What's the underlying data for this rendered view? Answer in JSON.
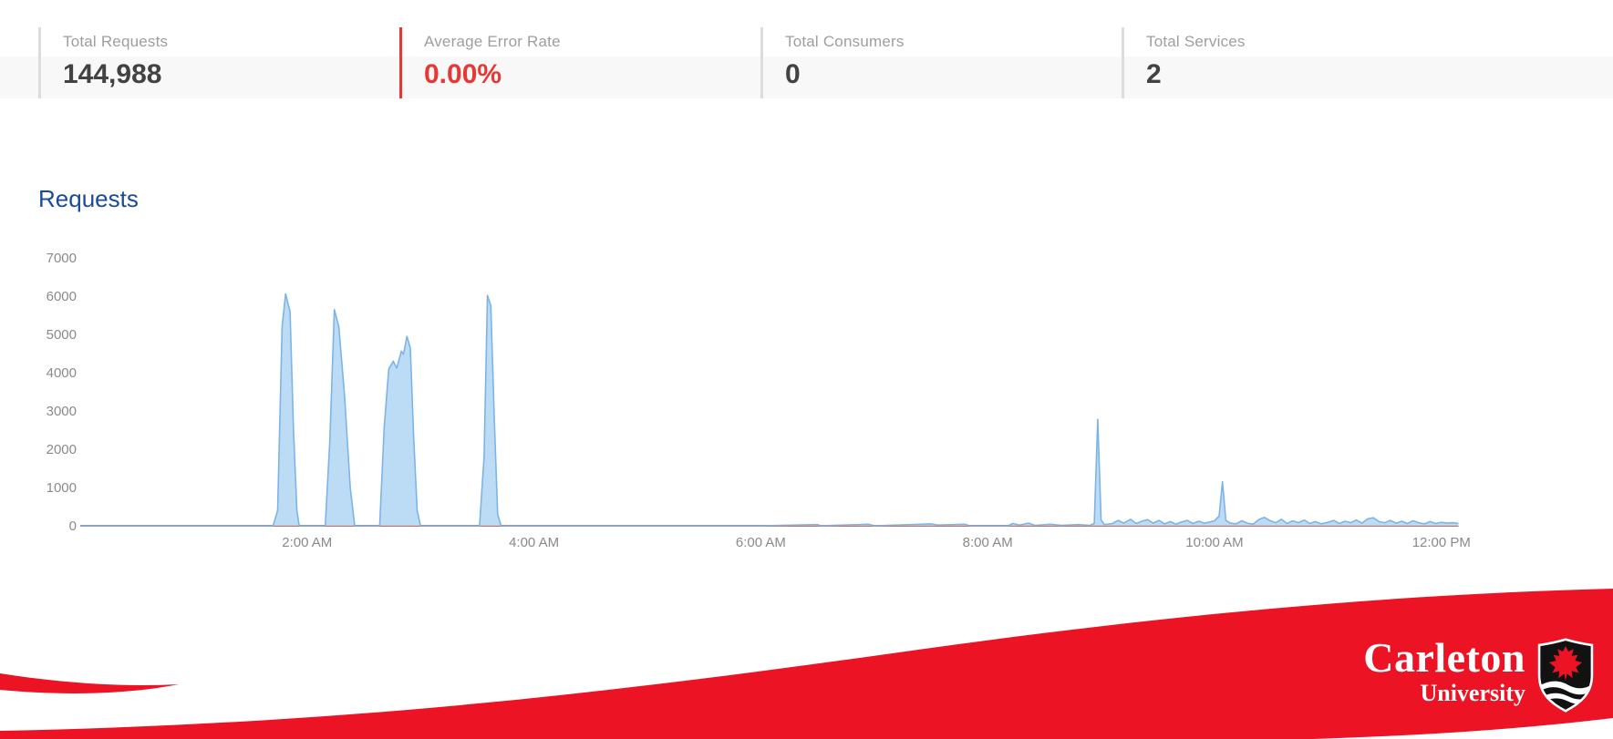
{
  "colors": {
    "brand_red": "#ec1325",
    "error_red": "#e53935",
    "title_blue": "#1a4a9c",
    "area_fill": "#b5d8f4",
    "area_line": "#7db4e5",
    "zero_line": "#cd6a5e",
    "label_gray": "#9e9e9e",
    "value_dark": "#424242",
    "axis_gray": "#8a8a8a",
    "divider_gray": "#dcdcdc"
  },
  "stats": {
    "items": [
      {
        "label": "Total Requests",
        "value": "144,988",
        "accent": "#dcdcdc",
        "value_color": "#424242"
      },
      {
        "label": "Average Error Rate",
        "value": "0.00%",
        "accent": "#e53935",
        "value_color": "#e53935"
      },
      {
        "label": "Total Consumers",
        "value": "0",
        "accent": "#dcdcdc",
        "value_color": "#424242"
      },
      {
        "label": "Total Services",
        "value": "2",
        "accent": "#dcdcdc",
        "value_color": "#424242"
      }
    ]
  },
  "chart_data": {
    "type": "area",
    "title": "Requests",
    "xlabel": "",
    "ylabel": "",
    "xlim_hours": [
      0,
      12.15
    ],
    "ylim": [
      0,
      7000
    ],
    "grid": false,
    "legend": "none",
    "y_ticks": [
      0,
      1000,
      2000,
      3000,
      4000,
      5000,
      6000,
      7000
    ],
    "x_ticks": [
      {
        "label": "2:00 AM",
        "hour": 2
      },
      {
        "label": "4:00 AM",
        "hour": 4
      },
      {
        "label": "6:00 AM",
        "hour": 6
      },
      {
        "label": "8:00 AM",
        "hour": 8
      },
      {
        "label": "10:00 AM",
        "hour": 10
      },
      {
        "label": "12:00 PM",
        "hour": 12
      }
    ],
    "series": [
      {
        "name": "requests",
        "points": [
          [
            0,
            0
          ],
          [
            1.7,
            0
          ],
          [
            1.74,
            400
          ],
          [
            1.78,
            5200
          ],
          [
            1.81,
            6060
          ],
          [
            1.85,
            5600
          ],
          [
            1.88,
            2500
          ],
          [
            1.91,
            400
          ],
          [
            1.93,
            0
          ],
          [
            2.16,
            0
          ],
          [
            2.2,
            2200
          ],
          [
            2.24,
            5650
          ],
          [
            2.28,
            5200
          ],
          [
            2.33,
            3400
          ],
          [
            2.38,
            1000
          ],
          [
            2.42,
            0
          ],
          [
            2.64,
            0
          ],
          [
            2.68,
            2600
          ],
          [
            2.72,
            4100
          ],
          [
            2.76,
            4300
          ],
          [
            2.79,
            4120
          ],
          [
            2.83,
            4560
          ],
          [
            2.85,
            4480
          ],
          [
            2.88,
            4950
          ],
          [
            2.91,
            4650
          ],
          [
            2.94,
            2300
          ],
          [
            2.97,
            400
          ],
          [
            3.0,
            0
          ],
          [
            3.52,
            0
          ],
          [
            3.56,
            1800
          ],
          [
            3.59,
            6020
          ],
          [
            3.62,
            5750
          ],
          [
            3.65,
            2800
          ],
          [
            3.68,
            300
          ],
          [
            3.71,
            0
          ],
          [
            4.0,
            0
          ],
          [
            5.0,
            0
          ],
          [
            6.0,
            0
          ],
          [
            6.5,
            30
          ],
          [
            6.53,
            0
          ],
          [
            6.95,
            40
          ],
          [
            7.0,
            0
          ],
          [
            7.5,
            50
          ],
          [
            7.56,
            20
          ],
          [
            7.8,
            40
          ],
          [
            7.84,
            0
          ],
          [
            8.18,
            0
          ],
          [
            8.22,
            60
          ],
          [
            8.28,
            20
          ],
          [
            8.36,
            70
          ],
          [
            8.42,
            10
          ],
          [
            8.55,
            40
          ],
          [
            8.65,
            10
          ],
          [
            8.8,
            30
          ],
          [
            8.9,
            10
          ],
          [
            8.94,
            60
          ],
          [
            8.97,
            2780
          ],
          [
            9.0,
            150
          ],
          [
            9.03,
            30
          ],
          [
            9.1,
            60
          ],
          [
            9.15,
            140
          ],
          [
            9.2,
            70
          ],
          [
            9.26,
            170
          ],
          [
            9.31,
            60
          ],
          [
            9.36,
            120
          ],
          [
            9.41,
            160
          ],
          [
            9.46,
            70
          ],
          [
            9.51,
            140
          ],
          [
            9.56,
            50
          ],
          [
            9.61,
            110
          ],
          [
            9.66,
            40
          ],
          [
            9.71,
            100
          ],
          [
            9.76,
            140
          ],
          [
            9.81,
            60
          ],
          [
            9.86,
            120
          ],
          [
            9.91,
            70
          ],
          [
            9.96,
            100
          ],
          [
            10.0,
            130
          ],
          [
            10.04,
            250
          ],
          [
            10.07,
            1150
          ],
          [
            10.1,
            140
          ],
          [
            10.14,
            70
          ],
          [
            10.19,
            50
          ],
          [
            10.24,
            130
          ],
          [
            10.29,
            70
          ],
          [
            10.34,
            40
          ],
          [
            10.39,
            160
          ],
          [
            10.44,
            220
          ],
          [
            10.49,
            130
          ],
          [
            10.54,
            80
          ],
          [
            10.59,
            170
          ],
          [
            10.64,
            60
          ],
          [
            10.69,
            130
          ],
          [
            10.74,
            80
          ],
          [
            10.79,
            150
          ],
          [
            10.84,
            60
          ],
          [
            10.89,
            110
          ],
          [
            10.94,
            50
          ],
          [
            11.0,
            90
          ],
          [
            11.05,
            140
          ],
          [
            11.1,
            60
          ],
          [
            11.15,
            120
          ],
          [
            11.2,
            80
          ],
          [
            11.25,
            150
          ],
          [
            11.3,
            70
          ],
          [
            11.35,
            180
          ],
          [
            11.4,
            210
          ],
          [
            11.45,
            110
          ],
          [
            11.5,
            80
          ],
          [
            11.55,
            140
          ],
          [
            11.6,
            70
          ],
          [
            11.65,
            120
          ],
          [
            11.7,
            60
          ],
          [
            11.75,
            130
          ],
          [
            11.8,
            80
          ],
          [
            11.85,
            50
          ],
          [
            11.9,
            110
          ],
          [
            11.95,
            60
          ],
          [
            12.0,
            90
          ],
          [
            12.05,
            70
          ],
          [
            12.1,
            80
          ],
          [
            12.15,
            60
          ]
        ]
      },
      {
        "name": "errors",
        "points": [
          [
            0,
            0
          ],
          [
            12.15,
            0
          ]
        ]
      }
    ]
  },
  "footer": {
    "brand_line1": "Carleton",
    "brand_line2": "University",
    "logo": "carleton-shield-maple-leaf"
  }
}
